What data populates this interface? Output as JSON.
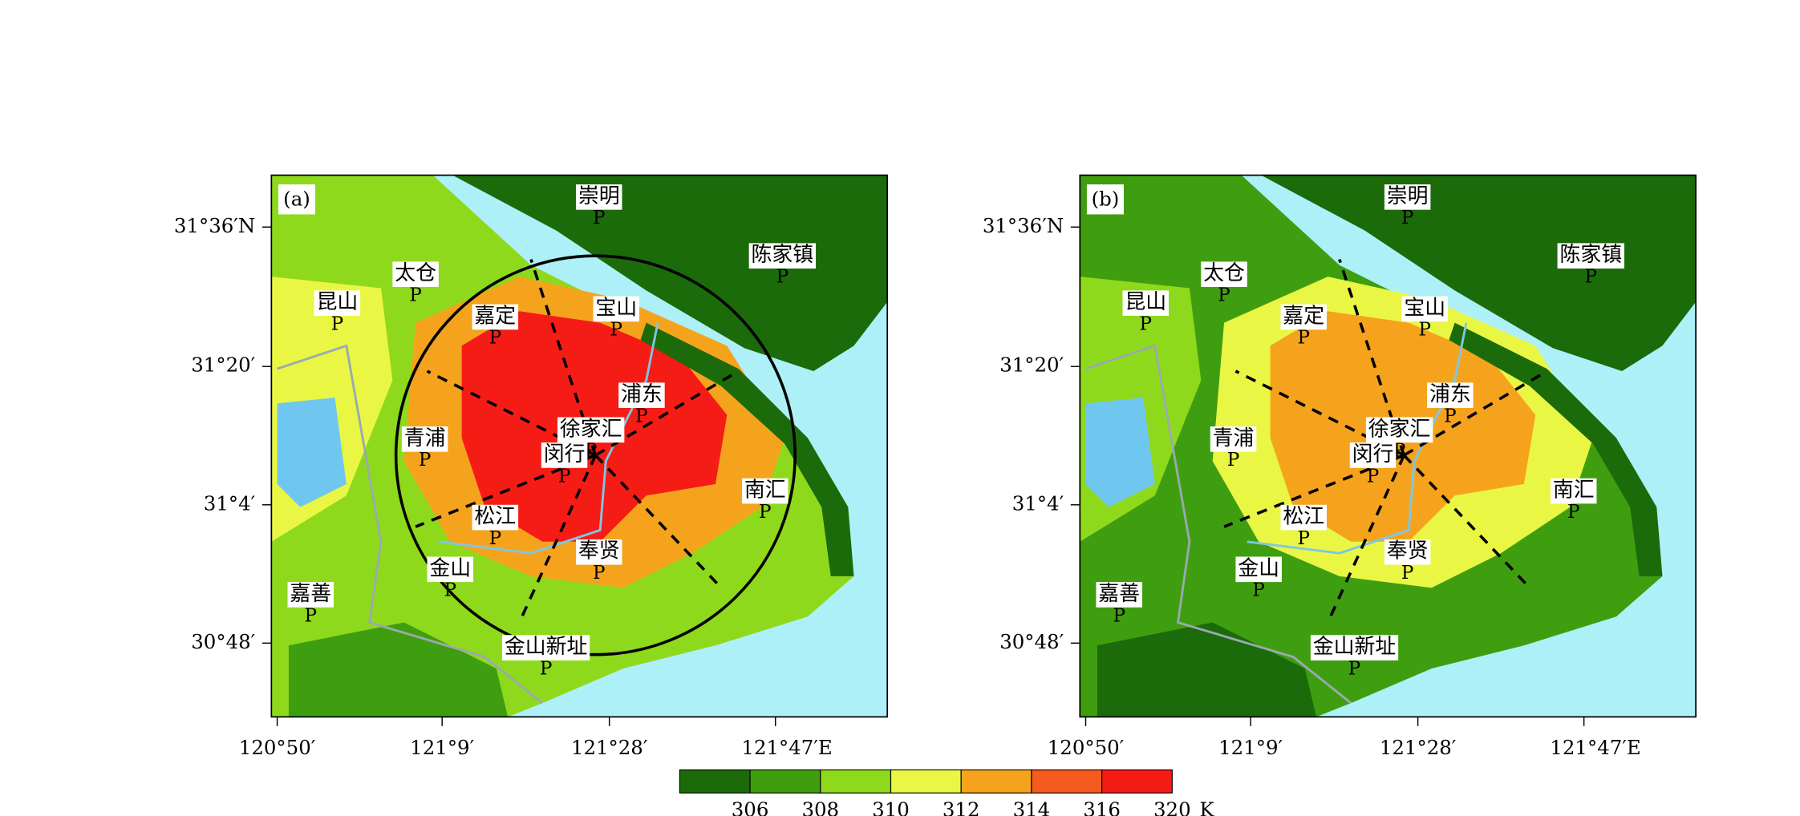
{
  "panels": [
    {
      "label": "(a)",
      "cities": [
        {
          "name": "崇明",
          "marker": "P"
        },
        {
          "name": "陈家镇",
          "marker": "P"
        },
        {
          "name": "太仓",
          "marker": "P"
        },
        {
          "name": "昆山",
          "marker": "P"
        },
        {
          "name": "嘉定",
          "marker": "P"
        },
        {
          "name": "宝山",
          "marker": "P"
        },
        {
          "name": "浦东",
          "marker": "P"
        },
        {
          "name": "徐家汇",
          "marker": "P"
        },
        {
          "name": "闵行",
          "marker": "P"
        },
        {
          "name": "青浦",
          "marker": "P"
        },
        {
          "name": "南汇",
          "marker": "P"
        },
        {
          "name": "松江",
          "marker": "P"
        },
        {
          "name": "奉贤",
          "marker": "P"
        },
        {
          "name": "金山",
          "marker": "P"
        },
        {
          "name": "嘉善",
          "marker": "P"
        },
        {
          "name": "金山新址",
          "marker": "P"
        }
      ]
    },
    {
      "label": "(b)",
      "cities": [
        {
          "name": "崇明",
          "marker": "P"
        },
        {
          "name": "陈家镇",
          "marker": "P"
        },
        {
          "name": "太仓",
          "marker": "P"
        },
        {
          "name": "昆山",
          "marker": "P"
        },
        {
          "name": "嘉定",
          "marker": "P"
        },
        {
          "name": "宝山",
          "marker": "P"
        },
        {
          "name": "浦东",
          "marker": "P"
        },
        {
          "name": "徐家汇",
          "marker": "P"
        },
        {
          "name": "闵行",
          "marker": "P"
        },
        {
          "name": "青浦",
          "marker": "P"
        },
        {
          "name": "南汇",
          "marker": "P"
        },
        {
          "name": "松江",
          "marker": "P"
        },
        {
          "name": "奉贤",
          "marker": "P"
        },
        {
          "name": "金山",
          "marker": "P"
        },
        {
          "name": "嘉善",
          "marker": "P"
        },
        {
          "name": "金山新址",
          "marker": "P"
        }
      ]
    }
  ],
  "x_axis": {
    "ticks": [
      "120°50′",
      "121°9′",
      "121°28′",
      "121°47′E"
    ]
  },
  "y_axis": {
    "ticks": [
      "31°36′N",
      "31°20′",
      "31°4′",
      "30°48′"
    ]
  },
  "colorbar": {
    "colors": [
      "#1b6b0b",
      "#3f9e10",
      "#8fd91c",
      "#e9f744",
      "#f5a31d",
      "#f55b1e",
      "#f51c16"
    ],
    "boundaries": [
      306,
      308,
      310,
      312,
      314,
      316,
      320
    ],
    "unit": "K"
  }
}
